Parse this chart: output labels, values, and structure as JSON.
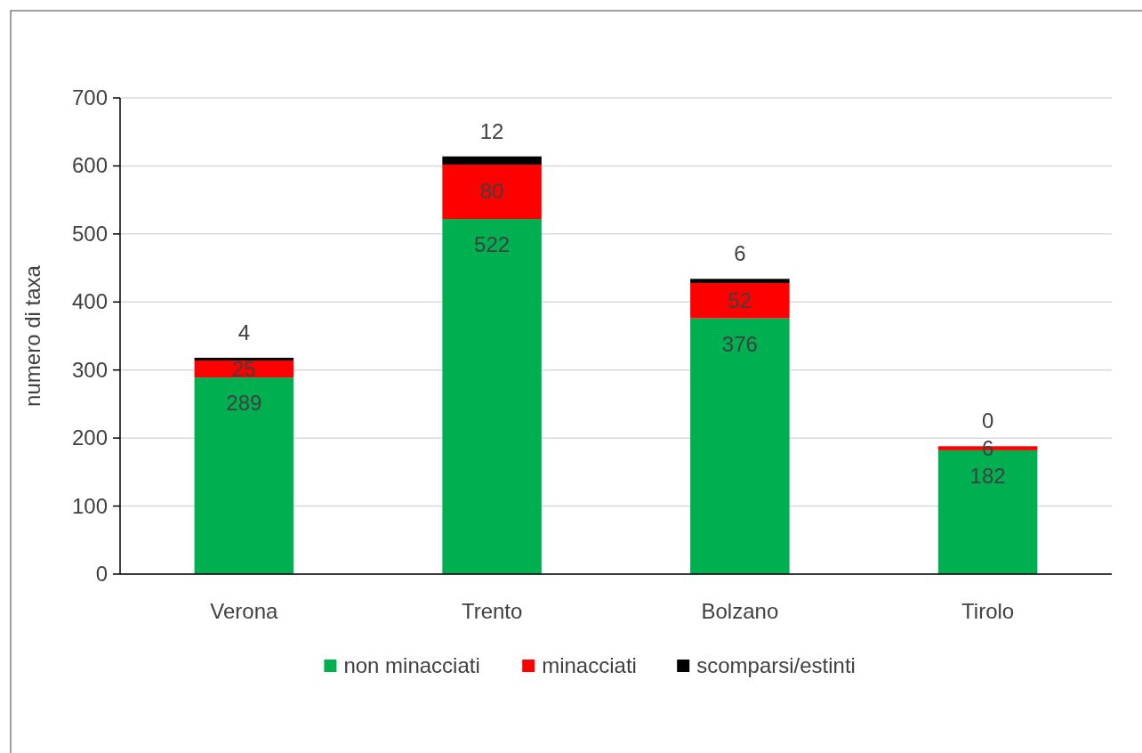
{
  "chart_data": {
    "type": "bar",
    "stacked": true,
    "ylabel": "numero di taxa",
    "categories": [
      "Verona",
      "Trento",
      "Bolzano",
      "Tirolo"
    ],
    "series": [
      {
        "name": "non minacciati",
        "color": "#00b050",
        "values": [
          289,
          522,
          376,
          182
        ]
      },
      {
        "name": "minacciati",
        "color": "#ff0000",
        "values": [
          25,
          80,
          52,
          6
        ]
      },
      {
        "name": "scomparsi/estinti",
        "color": "#000000",
        "values": [
          4,
          12,
          6,
          0
        ]
      }
    ],
    "ylim": [
      0,
      700
    ],
    "yticks": [
      0,
      100,
      200,
      300,
      400,
      500,
      600,
      700
    ],
    "grid": "y",
    "legend": "bottom",
    "data_labels": true
  }
}
